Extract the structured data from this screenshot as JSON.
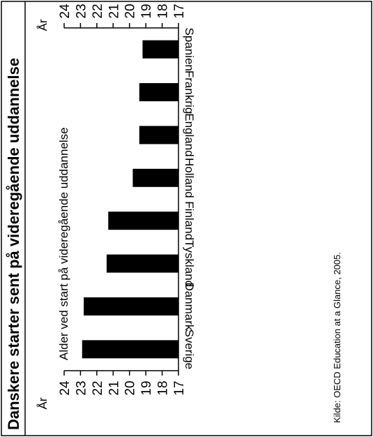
{
  "chart_data": {
    "type": "bar",
    "title": "Danskere starter sent på videregående uddannelse",
    "subtitle": "Alder ved start på videregående uddannelse",
    "source": "Kilde: OECD Education at a Glance, 2005.",
    "unit_label": "År",
    "categories": [
      "Sverige",
      "Danmark",
      "Tyskland",
      "Finland",
      "Holland",
      "England",
      "Frankrig",
      "Spanien"
    ],
    "values": [
      22.9,
      22.8,
      21.4,
      21.3,
      19.8,
      19.4,
      19.4,
      19.2
    ],
    "ylim": [
      17,
      24
    ],
    "ticks": [
      "17",
      "18",
      "19",
      "20",
      "21",
      "22",
      "23",
      "24"
    ],
    "bar_color": "#000000"
  }
}
